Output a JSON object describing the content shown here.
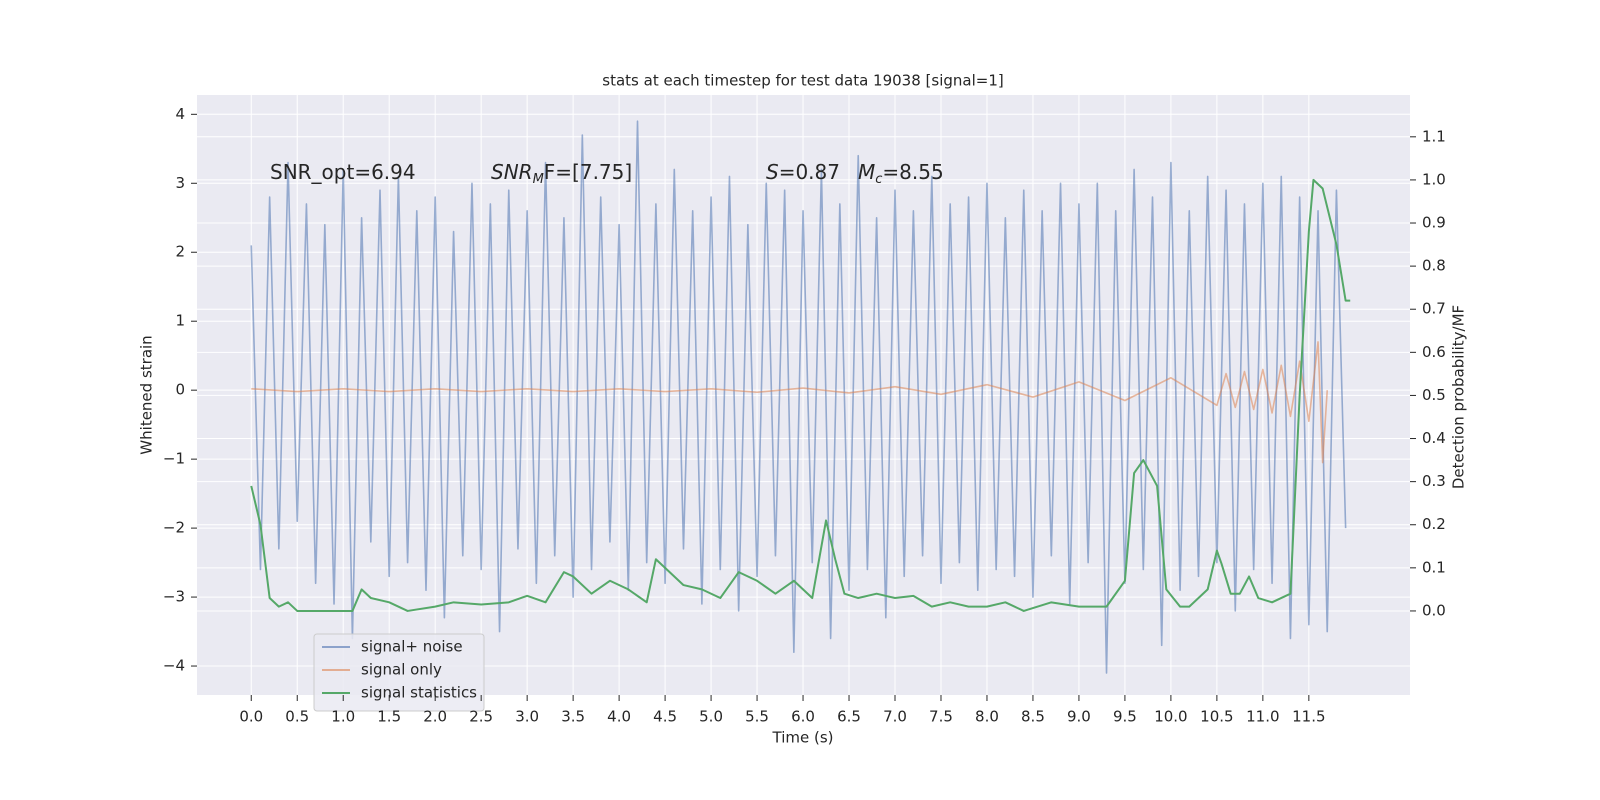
{
  "chart_data": {
    "type": "line",
    "title": "stats at each timestep for test data 19038 [signal=1]",
    "x_label": "Time (s)",
    "y_label": "Whitened strain",
    "y2_label": "Detection probability/MF",
    "annotations": [
      [
        "SNR_opt=6.94"
      ],
      [
        "SNR",
        "M",
        "F=[7.75]"
      ],
      [
        "S",
        "=0.87"
      ],
      [
        "M",
        "c",
        "=8.55"
      ]
    ],
    "xlim": [
      -0.59,
      12.6
    ],
    "xticks": [
      {
        "value": 0,
        "label": "0.0"
      },
      0.5,
      {
        "value": 1,
        "label": "1.0"
      },
      1.5,
      {
        "value": 2,
        "label": "2.0"
      },
      2.5,
      {
        "value": 3,
        "label": "3.0"
      },
      3.5,
      {
        "value": 4,
        "label": "4.0"
      },
      4.5,
      {
        "value": 5,
        "label": "5.0"
      },
      5.5,
      {
        "value": 6,
        "label": "6.0"
      },
      6.5,
      {
        "value": 7,
        "label": "7.0"
      },
      7.5,
      {
        "value": 8,
        "label": "8.0"
      },
      8.5,
      {
        "value": 9,
        "label": "9.0"
      },
      9.5,
      {
        "value": 10,
        "label": "10.0"
      },
      10.5,
      {
        "value": 11,
        "label": "11.0"
      },
      11.5
    ],
    "ylim": [
      -4.42,
      4.28
    ],
    "yticks": [
      {
        "value": -4,
        "label": "−4"
      },
      {
        "value": -3,
        "label": "−3"
      },
      {
        "value": -2,
        "label": "−2"
      },
      {
        "value": -1,
        "label": "−1"
      },
      0,
      1,
      2,
      3,
      4
    ],
    "y2lim": [
      -0.195,
      1.197
    ],
    "y2ticks": [
      {
        "value": 0,
        "label": "0.0"
      },
      0.1,
      0.2,
      0.3,
      0.4,
      0.5,
      0.6,
      0.7,
      0.8,
      0.9,
      {
        "value": 1,
        "label": "1.0"
      },
      1.1
    ],
    "grid": true,
    "legend": "lower left",
    "series": [
      {
        "name": "signal+ noise",
        "color": "#4c72b0",
        "x": [
          0.0,
          0.1,
          0.2,
          0.3,
          0.4,
          0.5,
          0.6,
          0.7,
          0.8,
          0.9,
          1.0,
          1.1,
          1.2,
          1.3,
          1.4,
          1.5,
          1.6,
          1.7,
          1.8,
          1.9,
          2.0,
          2.1,
          2.2,
          2.3,
          2.4,
          2.5,
          2.6,
          2.7,
          2.8,
          2.9,
          3.0,
          3.1,
          3.2,
          3.3,
          3.4,
          3.5,
          3.6,
          3.7,
          3.8,
          3.9,
          4.0,
          4.1,
          4.2,
          4.3,
          4.4,
          4.5,
          4.6,
          4.7,
          4.8,
          4.9,
          5.0,
          5.1,
          5.2,
          5.3,
          5.4,
          5.5,
          5.6,
          5.7,
          5.8,
          5.9,
          6.0,
          6.1,
          6.2,
          6.3,
          6.4,
          6.5,
          6.6,
          6.7,
          6.8,
          6.9,
          7.0,
          7.1,
          7.2,
          7.3,
          7.4,
          7.5,
          7.6,
          7.7,
          7.8,
          7.9,
          8.0,
          8.1,
          8.2,
          8.3,
          8.4,
          8.5,
          8.6,
          8.7,
          8.8,
          8.9,
          9.0,
          9.1,
          9.2,
          9.3,
          9.4,
          9.5,
          9.6,
          9.7,
          9.8,
          9.9,
          10.0,
          10.1,
          10.2,
          10.3,
          10.4,
          10.5,
          10.6,
          10.7,
          10.8,
          10.9,
          11.0,
          11.1,
          11.2,
          11.3,
          11.4,
          11.5,
          11.6,
          11.7,
          11.8,
          11.9
        ],
        "values": [
          2.1,
          -2.6,
          2.8,
          -2.3,
          3.3,
          -1.9,
          2.7,
          -2.8,
          2.4,
          -3.1,
          3.2,
          -3.6,
          2.5,
          -2.2,
          2.9,
          -2.7,
          3.1,
          -2.5,
          2.6,
          -2.9,
          2.8,
          -3.3,
          2.3,
          -2.4,
          3.0,
          -2.6,
          2.7,
          -3.5,
          2.9,
          -2.3,
          2.6,
          -2.8,
          3.3,
          -2.4,
          2.5,
          -3.0,
          3.7,
          -2.6,
          2.8,
          -2.2,
          2.4,
          -2.9,
          3.9,
          -2.5,
          2.7,
          -2.8,
          3.2,
          -2.3,
          2.6,
          -3.1,
          2.8,
          -2.6,
          3.1,
          -3.2,
          2.4,
          -2.7,
          3.0,
          -2.4,
          2.9,
          -3.8,
          2.6,
          -2.5,
          3.2,
          -3.6,
          2.7,
          -2.9,
          3.4,
          -2.6,
          2.5,
          -3.3,
          2.9,
          -2.7,
          2.6,
          -2.4,
          3.1,
          -2.8,
          2.7,
          -2.5,
          2.8,
          -2.9,
          3.0,
          -2.6,
          2.5,
          -2.7,
          2.9,
          -3.0,
          2.6,
          -2.4,
          3.0,
          -3.1,
          2.7,
          -2.5,
          3.0,
          -4.1,
          2.6,
          -2.8,
          3.2,
          -2.6,
          2.8,
          -3.7,
          3.3,
          -2.9,
          2.6,
          -2.7,
          3.1,
          -2.5,
          2.9,
          -3.2,
          2.7,
          -2.6,
          3.0,
          -2.8,
          3.1,
          -3.6,
          2.8,
          -3.4,
          2.6,
          -3.5,
          2.9,
          -2.0
        ]
      },
      {
        "name": "signal only",
        "color": "#dd8452",
        "x": [
          0.0,
          0.5,
          1.0,
          1.5,
          2.0,
          2.5,
          3.0,
          3.5,
          4.0,
          4.5,
          5.0,
          5.5,
          6.0,
          6.5,
          7.0,
          7.5,
          8.0,
          8.5,
          9.0,
          9.5,
          10.0,
          10.5,
          10.6,
          10.7,
          10.8,
          10.9,
          11.0,
          11.1,
          11.2,
          11.3,
          11.4,
          11.5,
          11.6,
          11.65,
          11.7
        ],
        "values": [
          0.02,
          -0.02,
          0.02,
          -0.02,
          0.02,
          -0.02,
          0.02,
          -0.02,
          0.02,
          -0.02,
          0.02,
          -0.03,
          0.03,
          -0.04,
          0.05,
          -0.06,
          0.08,
          -0.1,
          0.12,
          -0.15,
          0.18,
          -0.22,
          0.24,
          -0.25,
          0.27,
          -0.28,
          0.3,
          -0.33,
          0.36,
          -0.38,
          0.42,
          -0.45,
          0.7,
          -1.05,
          0.0
        ]
      },
      {
        "name": "signal statistics",
        "color": "#55a868",
        "axis": "y2",
        "x": [
          0.0,
          0.1,
          0.2,
          0.3,
          0.4,
          0.5,
          0.7,
          1.0,
          1.1,
          1.2,
          1.3,
          1.5,
          1.7,
          2.0,
          2.2,
          2.5,
          2.8,
          3.0,
          3.2,
          3.4,
          3.5,
          3.7,
          3.9,
          4.1,
          4.3,
          4.4,
          4.5,
          4.7,
          4.9,
          5.1,
          5.3,
          5.5,
          5.7,
          5.9,
          6.1,
          6.25,
          6.35,
          6.45,
          6.6,
          6.8,
          7.0,
          7.2,
          7.4,
          7.6,
          7.8,
          8.0,
          8.2,
          8.4,
          8.7,
          9.0,
          9.3,
          9.5,
          9.6,
          9.7,
          9.85,
          9.95,
          10.1,
          10.2,
          10.4,
          10.5,
          10.55,
          10.65,
          10.75,
          10.85,
          10.95,
          11.1,
          11.3,
          11.4,
          11.5,
          11.55,
          11.65,
          11.8,
          11.9,
          11.95
        ],
        "values": [
          0.29,
          0.2,
          0.03,
          0.01,
          0.02,
          0.0,
          0.0,
          0.0,
          0.0,
          0.05,
          0.03,
          0.02,
          0.0,
          0.01,
          0.02,
          0.015,
          0.02,
          0.035,
          0.02,
          0.09,
          0.08,
          0.04,
          0.07,
          0.05,
          0.02,
          0.12,
          0.1,
          0.06,
          0.05,
          0.03,
          0.09,
          0.07,
          0.04,
          0.07,
          0.03,
          0.21,
          0.12,
          0.04,
          0.03,
          0.04,
          0.03,
          0.035,
          0.01,
          0.02,
          0.01,
          0.01,
          0.02,
          0.0,
          0.02,
          0.01,
          0.01,
          0.07,
          0.32,
          0.35,
          0.29,
          0.05,
          0.01,
          0.01,
          0.05,
          0.14,
          0.11,
          0.04,
          0.04,
          0.08,
          0.03,
          0.02,
          0.04,
          0.5,
          0.88,
          1.0,
          0.98,
          0.85,
          0.72,
          0.72
        ]
      }
    ]
  }
}
